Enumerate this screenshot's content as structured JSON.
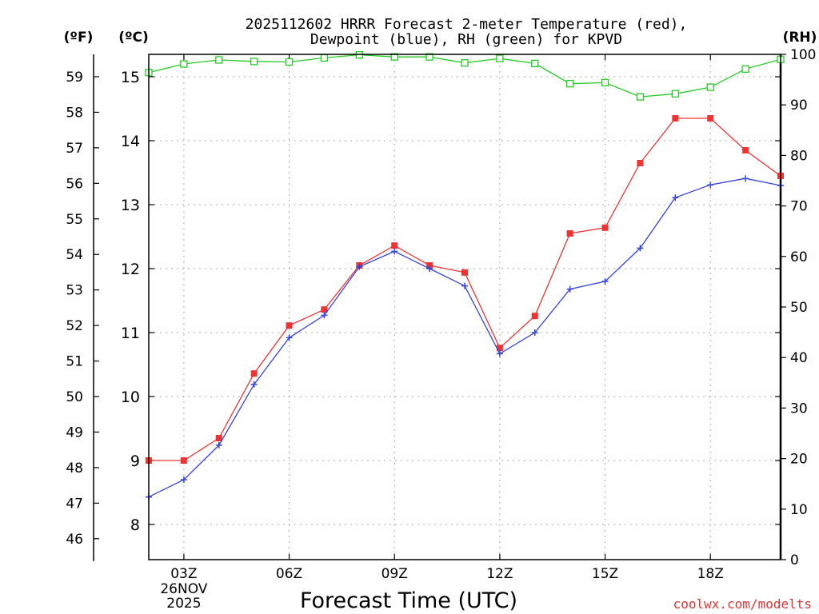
{
  "chart_data": {
    "type": "line",
    "title_line1": "2025112602 HRRR Forecast 2-meter Temperature (red),",
    "title_line2": "Dewpoint (blue), RH (green) for KPVD",
    "xlabel": "Forecast Time (UTC)",
    "credit": "coolwx.com/modelts",
    "unit_labels": {
      "fahrenheit": "(ºF)",
      "celsius": "(ºC)",
      "rh": "(RH)"
    },
    "x_hours": [
      2,
      3,
      4,
      5,
      6,
      7,
      8,
      9,
      10,
      11,
      12,
      13,
      14,
      15,
      16,
      17,
      18,
      19,
      20
    ],
    "x_ticks": [
      {
        "hour": 3,
        "label": "03Z",
        "sub1": "26NOV",
        "sub2": "2025"
      },
      {
        "hour": 6,
        "label": "06Z"
      },
      {
        "hour": 9,
        "label": "09Z"
      },
      {
        "hour": 12,
        "label": "12Z"
      },
      {
        "hour": 15,
        "label": "15Z"
      },
      {
        "hour": 18,
        "label": "18Z"
      }
    ],
    "xlim": [
      2,
      20
    ],
    "celsius_axis": {
      "ylim": [
        7.45,
        15.35
      ],
      "ticks": [
        8,
        9,
        10,
        11,
        12,
        13,
        14,
        15
      ]
    },
    "fahrenheit_ticks": [
      46,
      47,
      48,
      49,
      50,
      51,
      52,
      53,
      54,
      55,
      56,
      57,
      58,
      59
    ],
    "rh_axis": {
      "ylim": [
        0,
        100
      ],
      "ticks": [
        0,
        10,
        20,
        30,
        40,
        50,
        60,
        70,
        80,
        90,
        100
      ]
    },
    "series": [
      {
        "name": "Temperature",
        "unit": "C",
        "color": "#ee3333",
        "marker": "filled-square",
        "values": [
          9.0,
          9.0,
          9.35,
          10.36,
          11.11,
          11.36,
          12.05,
          12.36,
          12.05,
          11.94,
          10.76,
          11.26,
          12.55,
          12.64,
          13.65,
          14.35,
          14.35,
          13.85,
          13.45
        ]
      },
      {
        "name": "Dewpoint",
        "unit": "C",
        "color": "#3344dd",
        "marker": "plus",
        "values": [
          8.43,
          8.7,
          9.24,
          10.19,
          10.92,
          11.27,
          12.03,
          12.27,
          12.0,
          11.73,
          10.67,
          11.0,
          11.68,
          11.8,
          12.32,
          13.11,
          13.31,
          13.41,
          13.3
        ]
      },
      {
        "name": "RH",
        "unit": "%",
        "color": "#22cc22",
        "marker": "open-square",
        "values": [
          96.4,
          98.1,
          98.9,
          98.6,
          98.5,
          99.3,
          99.9,
          99.5,
          99.5,
          98.3,
          99.2,
          98.2,
          94.2,
          94.4,
          91.6,
          92.2,
          93.5,
          97.1,
          99.0
        ]
      }
    ]
  }
}
